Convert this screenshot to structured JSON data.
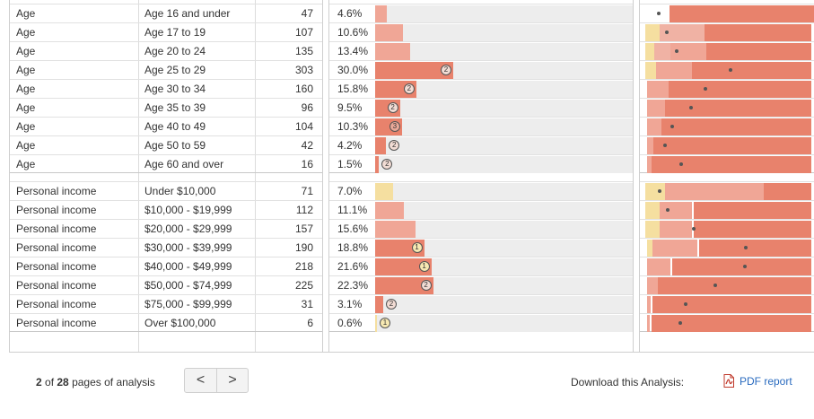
{
  "rows": [
    {
      "cat": "Age",
      "label": "Age 16 and under",
      "count": "47",
      "pct": "4.6%",
      "pv": 4.6,
      "bar": "#f0a696",
      "badge": "",
      "segs": [
        [
          "#e8826c",
          27,
          180
        ]
      ],
      "first": [
        "#ffffff",
        0,
        27
      ],
      "dots": [
        13
      ]
    },
    {
      "cat": "Age",
      "label": "Age 17 to 19",
      "count": "107",
      "pct": "10.6%",
      "pv": 10.6,
      "bar": "#f0a696",
      "badge": "",
      "segs": [
        [
          "#f5dfa0",
          0,
          16
        ],
        [
          "#f0b2a4",
          16,
          50
        ],
        [
          "#e8826c",
          66,
          119
        ]
      ],
      "dots": [
        22
      ]
    },
    {
      "cat": "Age",
      "label": "Age 20 to 24",
      "count": "135",
      "pct": "13.4%",
      "pv": 13.4,
      "bar": "#f0a696",
      "badge": "",
      "segs": [
        [
          "#f5dfa0",
          0,
          10
        ],
        [
          "#f0b2a4",
          10,
          18
        ],
        [
          "#f0a696",
          28,
          40
        ],
        [
          "#e8826c",
          68,
          117
        ]
      ],
      "dots": [
        33
      ]
    },
    {
      "cat": "Age",
      "label": "Age 25 to 29",
      "count": "303",
      "pct": "30.0%",
      "pv": 30.0,
      "bar": "#e8826c",
      "badge": "2",
      "segs": [
        [
          "#f5dfa0",
          0,
          12
        ],
        [
          "#f0a696",
          12,
          40
        ],
        [
          "#e8826c",
          52,
          133
        ]
      ],
      "dots": [
        93
      ]
    },
    {
      "cat": "Age",
      "label": "Age 30 to 34",
      "count": "160",
      "pct": "15.8%",
      "pv": 15.8,
      "bar": "#e8826c",
      "badge": "2",
      "segs": [
        [
          "#f0a696",
          2,
          24
        ],
        [
          "#e8826c",
          26,
          159
        ]
      ],
      "dots": [
        65
      ]
    },
    {
      "cat": "Age",
      "label": "Age 35 to 39",
      "count": "96",
      "pct": "9.5%",
      "pv": 9.5,
      "bar": "#e8826c",
      "badge": "2",
      "segs": [
        [
          "#f0a696",
          2,
          20
        ],
        [
          "#e8826c",
          22,
          163
        ]
      ],
      "dots": [
        49
      ]
    },
    {
      "cat": "Age",
      "label": "Age 40 to 49",
      "count": "104",
      "pct": "10.3%",
      "pv": 10.3,
      "bar": "#e8826c",
      "badge": "3",
      "segs": [
        [
          "#f0a696",
          2,
          16
        ],
        [
          "#e8826c",
          18,
          167
        ]
      ],
      "dots": [
        28
      ]
    },
    {
      "cat": "Age",
      "label": "Age 50 to 59",
      "count": "42",
      "pct": "4.2%",
      "pv": 4.2,
      "bar": "#e8826c",
      "badge": "2",
      "segs": [
        [
          "#f0a696",
          2,
          7
        ],
        [
          "#e8826c",
          9,
          176
        ]
      ],
      "dots": [
        20
      ]
    },
    {
      "cat": "Age",
      "label": "Age 60 and over",
      "count": "16",
      "pct": "1.5%",
      "pv": 1.5,
      "bar": "#e8826c",
      "badge": "2",
      "segs": [
        [
          "#f0a696",
          2,
          5
        ],
        [
          "#e8826c",
          7,
          178
        ]
      ],
      "dots": [
        38
      ]
    },
    {
      "cat": "Personal income",
      "label": "Under $10,000",
      "count": "71",
      "pct": "7.0%",
      "pv": 7.0,
      "bar": "#f5dfa0",
      "badge": "",
      "segs": [
        [
          "#f5dfa0",
          0,
          22
        ],
        [
          "#f0a696",
          22,
          110
        ],
        [
          "#e8826c",
          132,
          53
        ]
      ],
      "dots": [
        14
      ]
    },
    {
      "cat": "Personal income",
      "label": "$10,000 - $19,999",
      "count": "112",
      "pct": "11.1%",
      "pv": 11.1,
      "bar": "#f0a696",
      "badge": "",
      "segs": [
        [
          "#f5dfa0",
          0,
          16
        ],
        [
          "#f0a696",
          16,
          36
        ],
        [
          "#e8826c",
          54,
          131
        ]
      ],
      "dots": [
        23
      ]
    },
    {
      "cat": "Personal income",
      "label": "$20,000 - $29,999",
      "count": "157",
      "pct": "15.6%",
      "pv": 15.6,
      "bar": "#f0a696",
      "badge": "",
      "segs": [
        [
          "#f5dfa0",
          0,
          16
        ],
        [
          "#f0a696",
          16,
          36
        ],
        [
          "#e8826c",
          54,
          131
        ]
      ],
      "dots": [
        52
      ]
    },
    {
      "cat": "Personal income",
      "label": "$30,000 - $39,999",
      "count": "190",
      "pct": "18.8%",
      "pv": 18.8,
      "bar": "#e8826c",
      "badge": "1",
      "segs": [
        [
          "#f5dfa0",
          2,
          6
        ],
        [
          "#f0a696",
          8,
          50
        ],
        [
          "#e8826c",
          60,
          125
        ]
      ],
      "dots": [
        110
      ]
    },
    {
      "cat": "Personal income",
      "label": "$40,000 - $49,999",
      "count": "218",
      "pct": "21.6%",
      "pv": 21.6,
      "bar": "#e8826c",
      "badge": "1",
      "segs": [
        [
          "#f0a696",
          2,
          26
        ],
        [
          "#e8826c",
          30,
          155
        ]
      ],
      "dots": [
        109
      ]
    },
    {
      "cat": "Personal income",
      "label": "$50,000 - $74,999",
      "count": "225",
      "pct": "22.3%",
      "pv": 22.3,
      "bar": "#e8826c",
      "badge": "2",
      "segs": [
        [
          "#f0a696",
          2,
          12
        ],
        [
          "#e8826c",
          14,
          171
        ]
      ],
      "dots": [
        76
      ]
    },
    {
      "cat": "Personal income",
      "label": "$75,000 - $99,999",
      "count": "31",
      "pct": "3.1%",
      "pv": 3.1,
      "bar": "#e8826c",
      "badge": "2",
      "segs": [
        [
          "#f0a696",
          2,
          4
        ],
        [
          "#e8826c",
          8,
          177
        ]
      ],
      "dots": [
        43
      ]
    },
    {
      "cat": "Personal income",
      "label": "Over $100,000",
      "count": "6",
      "pct": "0.6%",
      "pv": 0.6,
      "bar": "#f5dfa0",
      "badge": "1",
      "segs": [
        [
          "#f0a696",
          2,
          3
        ],
        [
          "#e8826c",
          7,
          178
        ]
      ],
      "dots": [
        37
      ]
    }
  ],
  "footer": {
    "pages_current": "2",
    "pages_of": " of ",
    "pages_total": "28",
    "pages_suffix": " pages of analysis",
    "prev_glyph": "<",
    "next_glyph": ">",
    "download_label": "Download this Analysis:",
    "pdf_label": "PDF report"
  },
  "colors": {
    "track": "#ededed",
    "light": "#f5dfa0",
    "mid": "#f0a696",
    "strong": "#e8826c",
    "link": "#2a6bbf"
  }
}
